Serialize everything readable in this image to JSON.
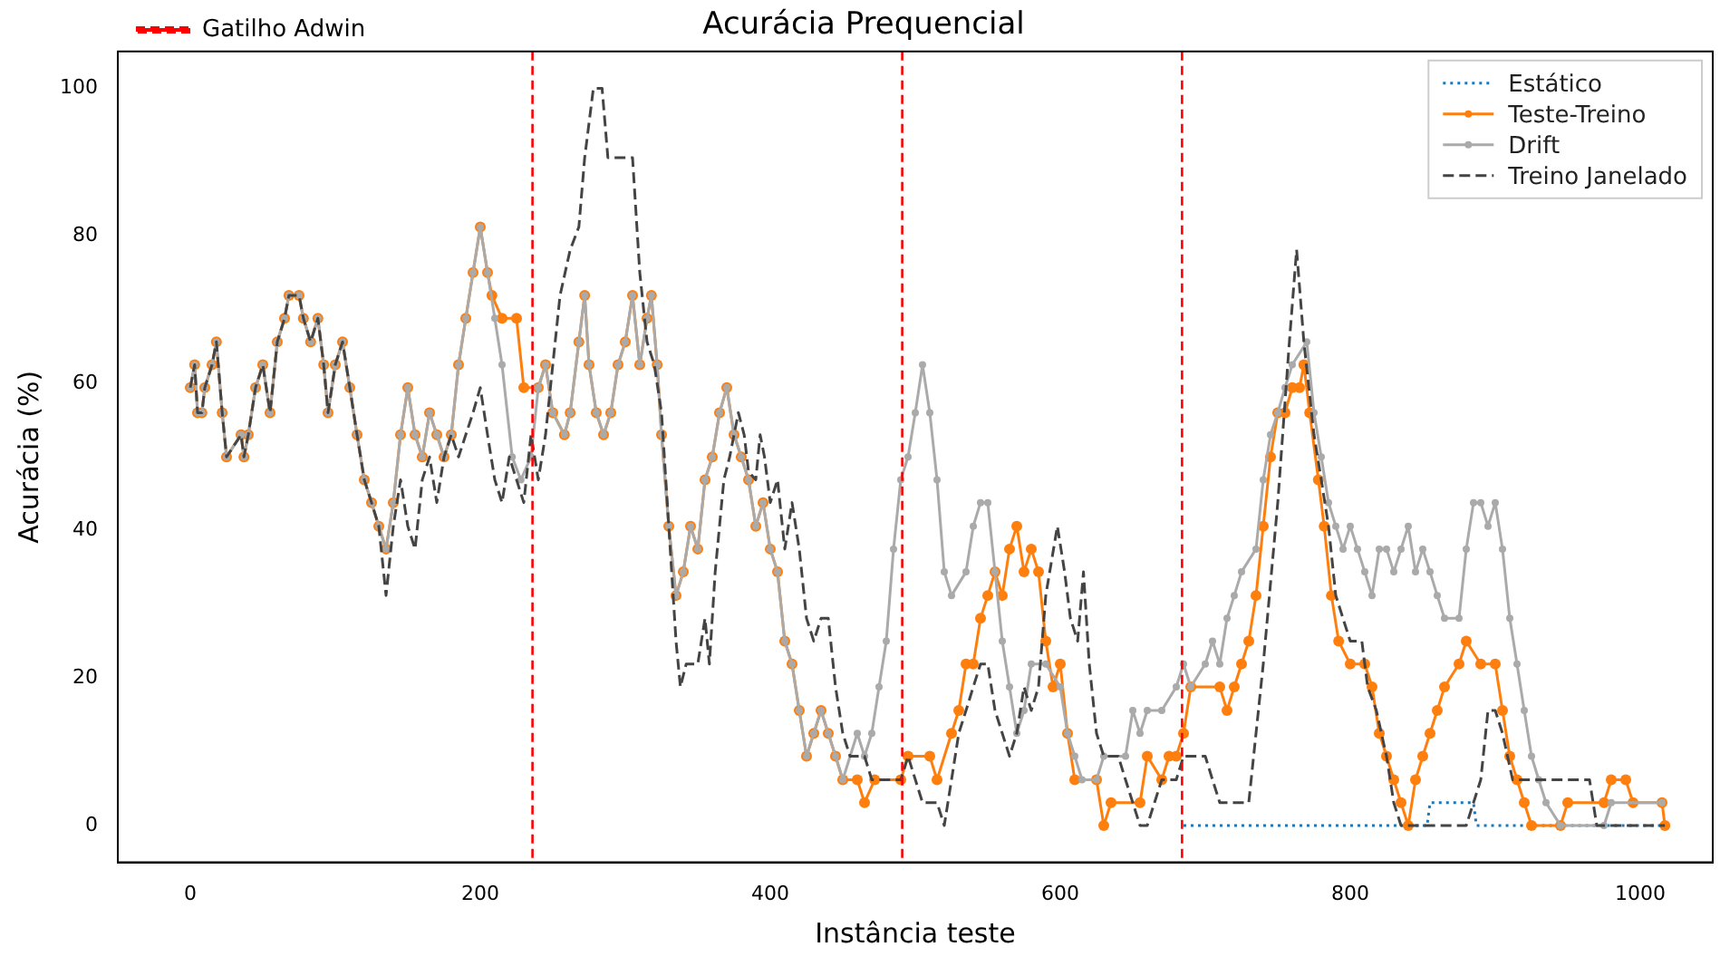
{
  "chart_data": {
    "type": "line",
    "title": "Acurácia Prequencial",
    "xlabel": "Instância teste",
    "ylabel": "Acurácia (%)",
    "xlim": [
      -50,
      1050
    ],
    "xticks": [
      0,
      200,
      400,
      600,
      800,
      1000
    ],
    "ylim": [
      -5,
      105
    ],
    "yticks": [
      0,
      20,
      40,
      60,
      80,
      100
    ],
    "grid": false,
    "legend": "top right",
    "ref_lines": [
      {
        "axis": "x",
        "value": 236,
        "label": "Gatilho Adwin",
        "color": "#ff0000",
        "line_style": "dashed"
      },
      {
        "axis": "x",
        "value": 491,
        "color": "#ff0000",
        "line_style": "dashed"
      },
      {
        "axis": "x",
        "value": 684,
        "color": "#ff0000",
        "line_style": "dashed"
      }
    ],
    "series": [
      {
        "name": "Estático",
        "color": "#1f77b4",
        "marker": "none",
        "line_style": "dotted",
        "x": [
          685,
          853,
          855,
          885,
          887,
          1017
        ],
        "values": [
          0,
          0,
          3.1,
          3.1,
          0,
          0
        ]
      },
      {
        "name": "Teste-Treino",
        "color": "#ff7f0e",
        "marker": "circle",
        "line_style": "solid",
        "x": [
          0,
          3,
          5,
          8,
          10,
          15,
          18,
          22,
          25,
          35,
          37,
          40,
          45,
          50,
          55,
          60,
          65,
          68,
          75,
          78,
          83,
          88,
          92,
          95,
          100,
          105,
          110,
          115,
          120,
          125,
          130,
          135,
          140,
          145,
          150,
          155,
          160,
          165,
          170,
          175,
          180,
          185,
          190,
          195,
          200,
          205,
          208,
          215,
          225,
          230,
          240,
          245,
          250,
          258,
          262,
          268,
          272,
          275,
          280,
          285,
          290,
          295,
          300,
          305,
          310,
          315,
          318,
          322,
          325,
          330,
          335,
          340,
          345,
          350,
          355,
          360,
          365,
          370,
          375,
          380,
          385,
          390,
          395,
          400,
          405,
          410,
          415,
          420,
          425,
          430,
          435,
          440,
          445,
          450,
          460,
          465,
          472,
          490,
          495,
          510,
          515,
          525,
          530,
          535,
          540,
          545,
          550,
          555,
          560,
          565,
          570,
          575,
          580,
          585,
          590,
          595,
          600,
          605,
          610,
          625,
          630,
          635,
          655,
          660,
          670,
          675,
          680,
          685,
          690,
          710,
          715,
          720,
          725,
          730,
          735,
          740,
          745,
          750,
          755,
          760,
          765,
          768,
          772,
          778,
          782,
          787,
          792,
          800,
          810,
          815,
          820,
          825,
          830,
          835,
          840,
          845,
          850,
          855,
          860,
          865,
          875,
          880,
          890,
          900,
          905,
          910,
          915,
          920,
          925,
          945,
          950,
          975,
          980,
          990,
          995,
          1015,
          1017
        ],
        "values": [
          59.4,
          62.5,
          56,
          56,
          59.4,
          62.5,
          65.6,
          56,
          50,
          53,
          50,
          53,
          59.4,
          62.5,
          56,
          65.6,
          68.8,
          71.9,
          71.9,
          68.8,
          65.6,
          68.8,
          62.5,
          56,
          62.5,
          65.6,
          59.4,
          53,
          46.9,
          43.8,
          40.6,
          37.5,
          43.8,
          53,
          59.4,
          53,
          50,
          56,
          53,
          50,
          53,
          62.5,
          68.8,
          75,
          81.2,
          75,
          71.9,
          68.8,
          68.8,
          59.4,
          59.4,
          62.5,
          56,
          53,
          56,
          65.6,
          71.9,
          62.5,
          56,
          53,
          56,
          62.5,
          65.6,
          71.9,
          62.5,
          68.8,
          71.9,
          62.5,
          53,
          40.6,
          31.2,
          34.4,
          40.6,
          37.5,
          46.9,
          50,
          56,
          59.4,
          53,
          50,
          46.9,
          40.6,
          43.8,
          37.5,
          34.4,
          25,
          21.9,
          15.6,
          9.4,
          12.5,
          15.6,
          12.5,
          9.4,
          6.2,
          6.2,
          3.1,
          6.2,
          6.2,
          9.4,
          9.4,
          6.2,
          12.5,
          15.6,
          21.9,
          21.9,
          28.1,
          31.2,
          34.4,
          31.2,
          37.5,
          40.6,
          34.4,
          37.5,
          34.4,
          25,
          18.8,
          21.9,
          12.5,
          6.2,
          6.2,
          0,
          3.1,
          3.1,
          9.4,
          6.2,
          9.4,
          9.4,
          12.5,
          18.8,
          18.8,
          15.6,
          18.8,
          21.9,
          25,
          31.2,
          40.6,
          50,
          56,
          56,
          59.4,
          59.4,
          62.5,
          56,
          46.9,
          40.6,
          31.2,
          25,
          21.9,
          21.9,
          18.8,
          12.5,
          9.4,
          6.2,
          3.1,
          0,
          6.2,
          9.4,
          12.5,
          15.6,
          18.8,
          21.9,
          25,
          21.9,
          21.9,
          15.6,
          9.4,
          6.2,
          3.1,
          0,
          0,
          3.1,
          3.1,
          6.2,
          6.2,
          3.1,
          3.1,
          0
        ]
      },
      {
        "name": "Drift",
        "color": "#aaaaaa",
        "marker": "circle",
        "line_style": "solid",
        "x": [
          0,
          3,
          5,
          8,
          10,
          15,
          18,
          22,
          25,
          35,
          37,
          40,
          45,
          50,
          55,
          60,
          65,
          68,
          75,
          78,
          83,
          88,
          92,
          95,
          100,
          105,
          110,
          115,
          120,
          125,
          130,
          135,
          140,
          145,
          150,
          155,
          160,
          165,
          170,
          175,
          180,
          185,
          190,
          195,
          200,
          205,
          210,
          215,
          222,
          228,
          235,
          240,
          245,
          250,
          258,
          262,
          268,
          272,
          275,
          280,
          285,
          290,
          295,
          300,
          305,
          310,
          315,
          318,
          322,
          325,
          330,
          335,
          340,
          345,
          350,
          355,
          360,
          365,
          370,
          375,
          380,
          385,
          390,
          395,
          400,
          405,
          410,
          415,
          420,
          425,
          430,
          435,
          440,
          445,
          450,
          460,
          465,
          470,
          475,
          480,
          485,
          490,
          495,
          500,
          505,
          510,
          515,
          520,
          525,
          535,
          540,
          545,
          550,
          555,
          560,
          565,
          570,
          575,
          580,
          590,
          600,
          605,
          610,
          615,
          625,
          630,
          645,
          650,
          655,
          660,
          670,
          680,
          685,
          690,
          700,
          705,
          710,
          715,
          720,
          725,
          735,
          740,
          745,
          750,
          755,
          760,
          770,
          775,
          780,
          785,
          790,
          795,
          800,
          805,
          810,
          815,
          820,
          825,
          830,
          835,
          840,
          845,
          850,
          855,
          860,
          865,
          875,
          880,
          885,
          890,
          895,
          900,
          905,
          910,
          915,
          920,
          925,
          930,
          935,
          945,
          975,
          980,
          1015
        ],
        "values": [
          59.4,
          62.5,
          56,
          56,
          59.4,
          62.5,
          65.6,
          56,
          50,
          53,
          50,
          53,
          59.4,
          62.5,
          56,
          65.6,
          68.8,
          71.9,
          71.9,
          68.8,
          65.6,
          68.8,
          62.5,
          56,
          62.5,
          65.6,
          59.4,
          53,
          46.9,
          43.8,
          40.6,
          37.5,
          43.8,
          53,
          59.4,
          53,
          50,
          56,
          53,
          50,
          53,
          62.5,
          68.8,
          75,
          81.2,
          75,
          68.8,
          62.5,
          50,
          46.9,
          50,
          59.4,
          62.5,
          56,
          53,
          56,
          65.6,
          71.9,
          62.5,
          56,
          53,
          56,
          62.5,
          65.6,
          71.9,
          62.5,
          68.8,
          71.9,
          62.5,
          53,
          40.6,
          31.2,
          34.4,
          40.6,
          37.5,
          46.9,
          50,
          56,
          59.4,
          53,
          50,
          46.9,
          40.6,
          43.8,
          37.5,
          34.4,
          25,
          21.9,
          15.6,
          9.4,
          12.5,
          15.6,
          12.5,
          9.4,
          6.2,
          12.5,
          9.4,
          12.5,
          18.8,
          25,
          37.5,
          46.9,
          50,
          56,
          62.5,
          56,
          46.9,
          34.4,
          31.2,
          34.4,
          40.6,
          43.8,
          43.8,
          34.4,
          25,
          18.8,
          12.5,
          15.6,
          21.9,
          21.9,
          18.8,
          12.5,
          9.4,
          6.2,
          6.2,
          9.4,
          9.4,
          15.6,
          12.5,
          15.6,
          15.6,
          18.8,
          21.9,
          18.8,
          21.9,
          25,
          21.9,
          28.1,
          31.2,
          34.4,
          37.5,
          46.9,
          53,
          56,
          59.4,
          62.5,
          65.6,
          56,
          50,
          43.8,
          40.6,
          37.5,
          40.6,
          37.5,
          34.4,
          31.2,
          37.5,
          37.5,
          34.4,
          37.5,
          40.6,
          34.4,
          37.5,
          34.4,
          31.2,
          28.1,
          28.1,
          37.5,
          43.8,
          43.8,
          40.6,
          43.8,
          37.5,
          28.1,
          21.9,
          15.6,
          9.4,
          6.2,
          3.1,
          0,
          0,
          3.1,
          3.1
        ]
      },
      {
        "name": "Treino Janelado",
        "color": "#444444",
        "marker": "none",
        "line_style": "dashed",
        "x": [
          0,
          3,
          5,
          8,
          10,
          15,
          18,
          22,
          25,
          35,
          37,
          40,
          45,
          50,
          55,
          60,
          65,
          68,
          75,
          78,
          83,
          88,
          92,
          95,
          100,
          105,
          110,
          115,
          120,
          125,
          130,
          135,
          140,
          145,
          150,
          155,
          160,
          165,
          170,
          175,
          180,
          185,
          190,
          195,
          200,
          205,
          210,
          215,
          220,
          225,
          230,
          235,
          240,
          245,
          250,
          255,
          262,
          268,
          272,
          278,
          284,
          288,
          305,
          310,
          315,
          320,
          325,
          330,
          335,
          338,
          342,
          350,
          355,
          358,
          362,
          368,
          372,
          378,
          382,
          385,
          390,
          393,
          396,
          400,
          405,
          410,
          415,
          420,
          425,
          430,
          435,
          440,
          445,
          450,
          455,
          465,
          470,
          490,
          495,
          505,
          515,
          520,
          525,
          530,
          535,
          540,
          545,
          550,
          555,
          560,
          565,
          570,
          575,
          580,
          585,
          590,
          598,
          603,
          607,
          612,
          616,
          620,
          625,
          630,
          640,
          645,
          650,
          655,
          660,
          665,
          670,
          680,
          685,
          700,
          705,
          710,
          730,
          740,
          750,
          758,
          763,
          768,
          775,
          780,
          785,
          790,
          795,
          800,
          808,
          812,
          818,
          825,
          830,
          835,
          880,
          885,
          890,
          895,
          900,
          905,
          912,
          965,
          970,
          1017
        ],
        "values": [
          59.4,
          62.5,
          56,
          56,
          59.4,
          62.5,
          65.6,
          56,
          50,
          53,
          50,
          53,
          59.4,
          62.5,
          56,
          65.6,
          68.8,
          71.9,
          71.9,
          68.8,
          65.6,
          68.8,
          62.5,
          56,
          62.5,
          65.6,
          59.4,
          53,
          46.9,
          43.8,
          40.6,
          31.2,
          40.6,
          46.9,
          40.6,
          37.5,
          46.9,
          50,
          43.8,
          50,
          53,
          50,
          53,
          56,
          59.4,
          53,
          46.9,
          43.8,
          50,
          46.9,
          43.8,
          53,
          46.9,
          53,
          62.5,
          71.9,
          78.1,
          81.2,
          90.6,
          100,
          100,
          90.6,
          90.6,
          75,
          65.6,
          62.5,
          56,
          40.6,
          25,
          18.8,
          21.9,
          21.9,
          28.1,
          21.9,
          34.4,
          46.9,
          50,
          56,
          53,
          48,
          46.9,
          53,
          50,
          43.8,
          46.9,
          37.5,
          43.8,
          37.5,
          28.1,
          25,
          28.1,
          28.1,
          18.8,
          12.5,
          9.4,
          9.4,
          6.2,
          6.2,
          9.4,
          3.1,
          3.1,
          0,
          6.2,
          12.5,
          15.6,
          18.8,
          21.9,
          21.9,
          15.6,
          12.5,
          9.4,
          12.5,
          18.8,
          15.6,
          18.8,
          31.2,
          40.6,
          34.4,
          28.1,
          25,
          34.4,
          21.9,
          12.5,
          9.4,
          9.4,
          6.2,
          3.1,
          0,
          0,
          3.1,
          6.2,
          6.2,
          9.4,
          9.4,
          6.2,
          3.1,
          3.1,
          21.9,
          43.8,
          65.6,
          78.1,
          65.6,
          53,
          46.9,
          40.6,
          31.2,
          28.1,
          25,
          25,
          18.8,
          15.6,
          9.4,
          3.1,
          0,
          0,
          3.1,
          6.2,
          15.6,
          15.6,
          12.5,
          6.2,
          6.2,
          0,
          0
        ]
      }
    ]
  }
}
